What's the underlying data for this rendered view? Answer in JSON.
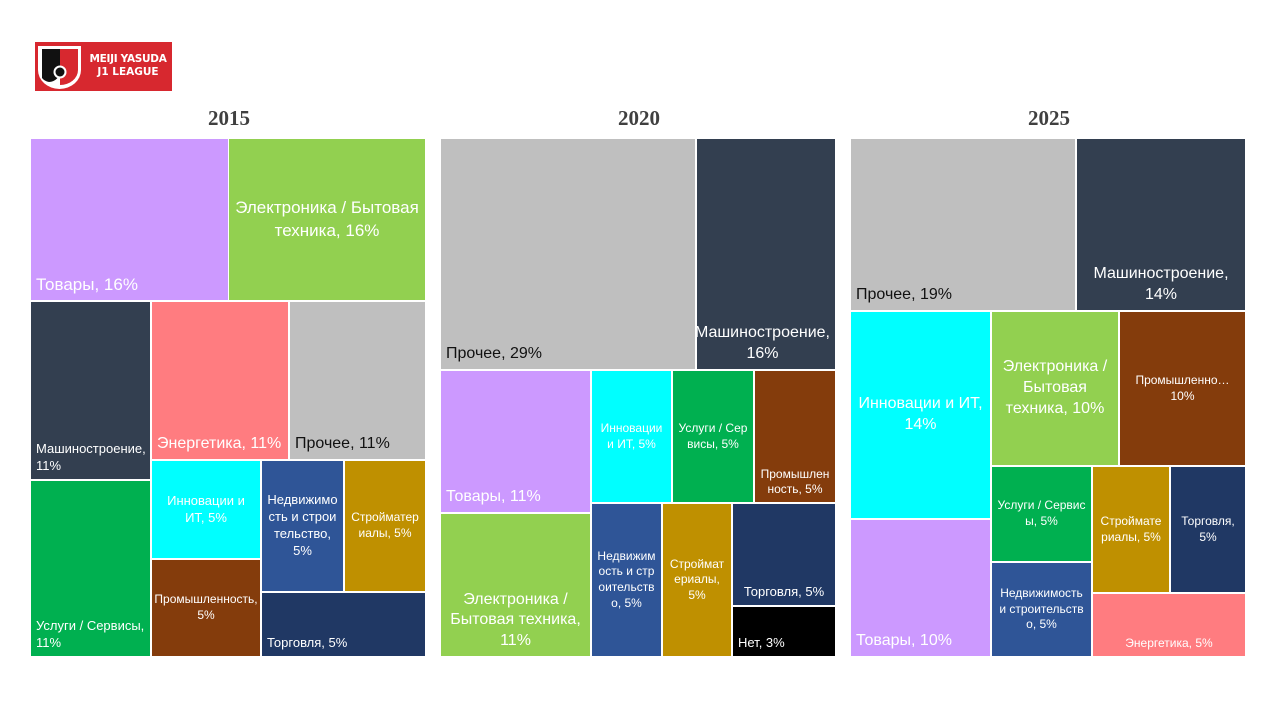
{
  "logo": {
    "line1": "MEIJI YASUDA",
    "line2": "J1 LEAGUE"
  },
  "colors": {
    "goods": "#cc99ff",
    "electronics": "#92d050",
    "machinery": "#333f50",
    "energy": "#ff7c80",
    "other": "#bfbfbf",
    "services": "#00b050",
    "innovation": "#00ffff",
    "industry": "#843c0c",
    "realestate": "#2f5597",
    "materials": "#bf9000",
    "trade": "#203864",
    "none": "#000000"
  },
  "chart_data": [
    {
      "type": "treemap",
      "title": "2015",
      "tiles": [
        {
          "label": "Товары, 16%",
          "category": "goods",
          "value": 16
        },
        {
          "label": "Электроника / Бытовая техника, 16%",
          "category": "electronics",
          "value": 16
        },
        {
          "label": "Машиностроение, 11%",
          "category": "machinery",
          "value": 11
        },
        {
          "label": "Энергетика, 11%",
          "category": "energy",
          "value": 11
        },
        {
          "label": "Прочее, 11%",
          "category": "other",
          "value": 11
        },
        {
          "label": "Услуги / Сервисы, 11%",
          "category": "services",
          "value": 11
        },
        {
          "label": "Инновации и ИТ, 5%",
          "category": "innovation",
          "value": 5
        },
        {
          "label": "Недвижимость и строительство, 5%",
          "category": "realestate",
          "value": 5
        },
        {
          "label": "Стройматериалы, 5%",
          "category": "materials",
          "value": 5
        },
        {
          "label": "Промышленность, 5%",
          "category": "industry",
          "value": 5
        },
        {
          "label": "Торговля, 5%",
          "category": "trade",
          "value": 5
        }
      ]
    },
    {
      "type": "treemap",
      "title": "2020",
      "tiles": [
        {
          "label": "Прочее, 29%",
          "category": "other",
          "value": 29
        },
        {
          "label": "Машиностроение, 16%",
          "category": "machinery",
          "value": 16
        },
        {
          "label": "Товары, 11%",
          "category": "goods",
          "value": 11
        },
        {
          "label": "Инновации и ИТ, 5%",
          "category": "innovation",
          "value": 5
        },
        {
          "label": "Услуги / Сервисы, 5%",
          "category": "services",
          "value": 5
        },
        {
          "label": "Промышленность, 5%",
          "category": "industry",
          "value": 5
        },
        {
          "label": "Электроника / Бытовая техника, 11%",
          "category": "electronics",
          "value": 11
        },
        {
          "label": "Недвижимость и строительство, 5%",
          "category": "realestate",
          "value": 5
        },
        {
          "label": "Стройматериалы, 5%",
          "category": "materials",
          "value": 5
        },
        {
          "label": "Торговля, 5%",
          "category": "trade",
          "value": 5
        },
        {
          "label": "Нет, 3%",
          "category": "none",
          "value": 3
        }
      ]
    },
    {
      "type": "treemap",
      "title": "2025",
      "tiles": [
        {
          "label": "Прочее, 19%",
          "category": "other",
          "value": 19
        },
        {
          "label": "Машиностроение, 14%",
          "category": "machinery",
          "value": 14
        },
        {
          "label": "Инновации и ИТ, 14%",
          "category": "innovation",
          "value": 14
        },
        {
          "label": "Электроника / Бытовая техника, 10%",
          "category": "electronics",
          "value": 10
        },
        {
          "label": "Промышленно…\n10%",
          "category": "industry",
          "value": 10
        },
        {
          "label": "Товары, 10%",
          "category": "goods",
          "value": 10
        },
        {
          "label": "Услуги / Сервисы, 5%",
          "category": "services",
          "value": 5
        },
        {
          "label": "Стройматериалы, 5%",
          "category": "materials",
          "value": 5
        },
        {
          "label": "Торговля, 5%",
          "category": "trade",
          "value": 5
        },
        {
          "label": "Недвижимость и строительство, 5%",
          "category": "realestate",
          "value": 5
        },
        {
          "label": "Энергетика, 5%",
          "category": "energy",
          "value": 5
        }
      ]
    }
  ]
}
